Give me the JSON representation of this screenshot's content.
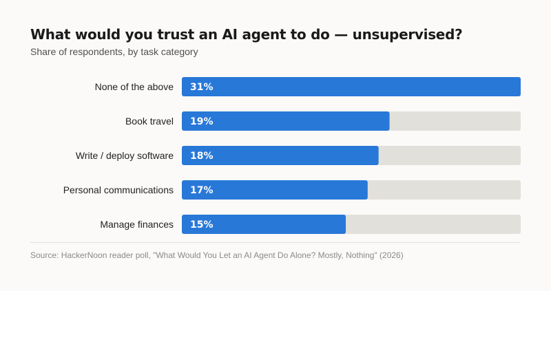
{
  "chart_data": {
    "type": "bar",
    "orientation": "horizontal",
    "title": "What would you trust an AI agent to do — unsupervised?",
    "subtitle": "Share of respondents, by task category",
    "categories": [
      "None of the above",
      "Book travel",
      "Write / deploy software",
      "Personal communications",
      "Manage finances"
    ],
    "values": [
      31,
      19,
      18,
      17,
      15
    ],
    "value_labels": [
      "31%",
      "19%",
      "18%",
      "17%",
      "15%"
    ],
    "unit": "%",
    "xlim": [
      0,
      31
    ],
    "grid": false,
    "legend": "none",
    "source": "Source: HackerNoon reader poll, \"What Would You Let an AI Agent Do Alone? Mostly, Nothing\" (2026)"
  },
  "colors": {
    "bar": "#2878d8",
    "track": "#e2e0da",
    "background": "#fbfaf8"
  }
}
